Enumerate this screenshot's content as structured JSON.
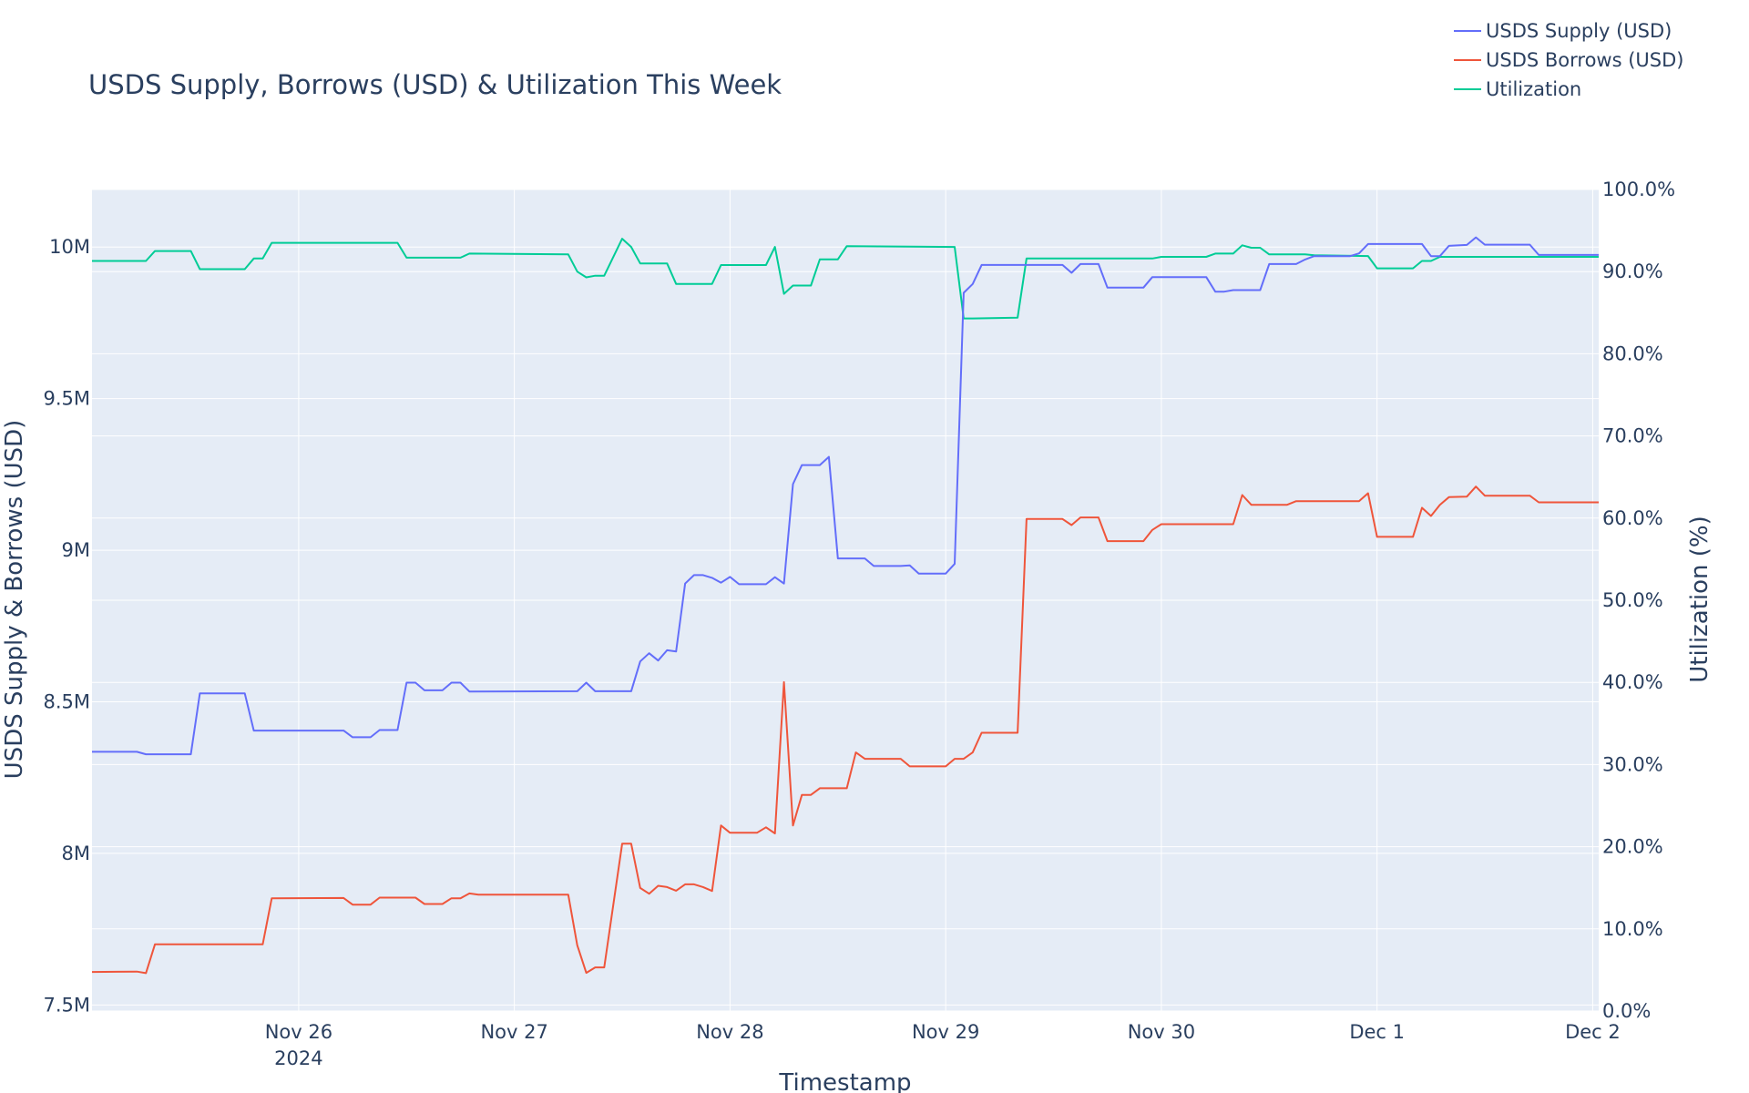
{
  "chart_data": {
    "type": "line",
    "title": "USDS Supply, Borrows (USD) & Utilization This Week",
    "xlabel": "Timestamp",
    "ylabel": "USDS Supply & Borrows (USD)",
    "y2label": "Utilization (%)",
    "x_tick_labels": [
      "Nov 26",
      "Nov 27",
      "Nov 28",
      "Nov 29",
      "Nov 30",
      "Dec 1",
      "Dec 2"
    ],
    "x_year_label": "2024",
    "y_tick_labels": [
      "7.5M",
      "8M",
      "8.5M",
      "9M",
      "9.5M",
      "10M"
    ],
    "y2_tick_labels": [
      "0.0%",
      "10.0%",
      "20.0%",
      "30.0%",
      "40.0%",
      "50.0%",
      "60.0%",
      "70.0%",
      "80.0%",
      "90.0%",
      "100.0%"
    ],
    "xlim": [
      "2024-11-25 01:00",
      "2024-12-02 00:40"
    ],
    "ylim": [
      7480000,
      10190000
    ],
    "y2lim": [
      0,
      100
    ],
    "grid": true,
    "legend_position": "top-right",
    "colors": {
      "plot_bg": "#e5ecf6",
      "supply": "#636efa",
      "borrows": "#ef553b",
      "utilization": "#00cc96",
      "text": "#2a3f5f"
    },
    "series": [
      {
        "name": "USDS Supply (USD)",
        "axis": "y",
        "points": [
          [
            "2024-11-25 01:00",
            8335000
          ],
          [
            "2024-11-25 06:00",
            8335000
          ],
          [
            "2024-11-25 07:00",
            8327000
          ],
          [
            "2024-11-25 12:00",
            8327000
          ],
          [
            "2024-11-25 13:00",
            8528000
          ],
          [
            "2024-11-25 18:00",
            8528000
          ],
          [
            "2024-11-25 19:00",
            8405000
          ],
          [
            "2024-11-26 05:00",
            8405000
          ],
          [
            "2024-11-26 06:00",
            8383000
          ],
          [
            "2024-11-26 08:00",
            8383000
          ],
          [
            "2024-11-26 09:00",
            8407000
          ],
          [
            "2024-11-26 11:00",
            8407000
          ],
          [
            "2024-11-26 12:00",
            8563000
          ],
          [
            "2024-11-26 13:00",
            8563000
          ],
          [
            "2024-11-26 14:00",
            8538000
          ],
          [
            "2024-11-26 16:00",
            8538000
          ],
          [
            "2024-11-26 17:00",
            8563000
          ],
          [
            "2024-11-26 18:00",
            8563000
          ],
          [
            "2024-11-26 19:00",
            8534000
          ],
          [
            "2024-11-27 07:00",
            8535000
          ],
          [
            "2024-11-27 08:00",
            8563000
          ],
          [
            "2024-11-27 09:00",
            8535000
          ],
          [
            "2024-11-27 13:00",
            8535000
          ],
          [
            "2024-11-27 14:00",
            8633000
          ],
          [
            "2024-11-27 15:00",
            8660000
          ],
          [
            "2024-11-27 16:00",
            8636000
          ],
          [
            "2024-11-27 17:00",
            8670000
          ],
          [
            "2024-11-27 18:00",
            8666000
          ],
          [
            "2024-11-27 19:00",
            8890000
          ],
          [
            "2024-11-27 20:00",
            8918000
          ],
          [
            "2024-11-27 21:00",
            8918000
          ],
          [
            "2024-11-27 22:00",
            8909000
          ],
          [
            "2024-11-27 23:00",
            8893000
          ],
          [
            "2024-11-28 00:00",
            8912000
          ],
          [
            "2024-11-28 01:00",
            8888000
          ],
          [
            "2024-11-28 04:00",
            8888000
          ],
          [
            "2024-11-28 05:00",
            8911000
          ],
          [
            "2024-11-28 06:00",
            8890000
          ],
          [
            "2024-11-28 07:00",
            9218000
          ],
          [
            "2024-11-28 08:00",
            9281000
          ],
          [
            "2024-11-28 10:00",
            9281000
          ],
          [
            "2024-11-28 11:00",
            9308000
          ],
          [
            "2024-11-28 12:00",
            8973000
          ],
          [
            "2024-11-28 15:00",
            8973000
          ],
          [
            "2024-11-28 16:00",
            8948000
          ],
          [
            "2024-11-28 19:00",
            8948000
          ],
          [
            "2024-11-28 20:00",
            8950000
          ],
          [
            "2024-11-28 21:00",
            8923000
          ],
          [
            "2024-11-29 00:00",
            8923000
          ],
          [
            "2024-11-29 01:00",
            8955000
          ],
          [
            "2024-11-29 02:00",
            9849000
          ],
          [
            "2024-11-29 03:00",
            9878000
          ],
          [
            "2024-11-29 04:00",
            9941000
          ],
          [
            "2024-11-29 13:00",
            9941000
          ],
          [
            "2024-11-29 14:00",
            9915000
          ],
          [
            "2024-11-29 15:00",
            9944000
          ],
          [
            "2024-11-29 17:00",
            9944000
          ],
          [
            "2024-11-29 18:00",
            9866000
          ],
          [
            "2024-11-29 22:00",
            9866000
          ],
          [
            "2024-11-29 23:00",
            9901000
          ],
          [
            "2024-11-30 05:00",
            9901000
          ],
          [
            "2024-11-30 06:00",
            9853000
          ],
          [
            "2024-11-30 07:00",
            9853000
          ],
          [
            "2024-11-30 08:00",
            9858000
          ],
          [
            "2024-11-30 11:00",
            9858000
          ],
          [
            "2024-11-30 12:00",
            9944000
          ],
          [
            "2024-11-30 15:00",
            9944000
          ],
          [
            "2024-11-30 16:00",
            9959000
          ],
          [
            "2024-11-30 17:00",
            9970000
          ],
          [
            "2024-11-30 21:00",
            9970000
          ],
          [
            "2024-11-30 22:00",
            9979000
          ],
          [
            "2024-11-30 23:00",
            10010000
          ],
          [
            "2024-12-01 05:00",
            10010000
          ],
          [
            "2024-12-01 06:00",
            9970000
          ],
          [
            "2024-12-01 07:00",
            9970000
          ],
          [
            "2024-12-01 08:00",
            10004000
          ],
          [
            "2024-12-01 10:00",
            10007000
          ],
          [
            "2024-12-01 11:00",
            10032000
          ],
          [
            "2024-12-01 12:00",
            10008000
          ],
          [
            "2024-12-01 17:00",
            10008000
          ],
          [
            "2024-12-01 18:00",
            9974000
          ],
          [
            "2024-12-02 00:40",
            9974000
          ]
        ]
      },
      {
        "name": "USDS Borrows (USD)",
        "axis": "y",
        "points": [
          [
            "2024-11-25 01:00",
            7609000
          ],
          [
            "2024-11-25 06:00",
            7610000
          ],
          [
            "2024-11-25 07:00",
            7605000
          ],
          [
            "2024-11-25 08:00",
            7700000
          ],
          [
            "2024-11-25 20:00",
            7700000
          ],
          [
            "2024-11-25 21:00",
            7852000
          ],
          [
            "2024-11-26 05:00",
            7853000
          ],
          [
            "2024-11-26 06:00",
            7831000
          ],
          [
            "2024-11-26 08:00",
            7831000
          ],
          [
            "2024-11-26 09:00",
            7854000
          ],
          [
            "2024-11-26 13:00",
            7854000
          ],
          [
            "2024-11-26 14:00",
            7833000
          ],
          [
            "2024-11-26 16:00",
            7833000
          ],
          [
            "2024-11-26 17:00",
            7852000
          ],
          [
            "2024-11-26 18:00",
            7852000
          ],
          [
            "2024-11-26 19:00",
            7868000
          ],
          [
            "2024-11-26 20:00",
            7864000
          ],
          [
            "2024-11-27 06:00",
            7864000
          ],
          [
            "2024-11-27 07:00",
            7697000
          ],
          [
            "2024-11-27 08:00",
            7606000
          ],
          [
            "2024-11-27 09:00",
            7624000
          ],
          [
            "2024-11-27 10:00",
            7624000
          ],
          [
            "2024-11-27 12:00",
            8032000
          ],
          [
            "2024-11-27 13:00",
            8032000
          ],
          [
            "2024-11-27 14:00",
            7886000
          ],
          [
            "2024-11-27 15:00",
            7867000
          ],
          [
            "2024-11-27 16:00",
            7893000
          ],
          [
            "2024-11-27 17:00",
            7889000
          ],
          [
            "2024-11-27 18:00",
            7877000
          ],
          [
            "2024-11-27 19:00",
            7898000
          ],
          [
            "2024-11-27 20:00",
            7898000
          ],
          [
            "2024-11-27 21:00",
            7889000
          ],
          [
            "2024-11-27 22:00",
            7876000
          ],
          [
            "2024-11-27 23:00",
            8092000
          ],
          [
            "2024-11-28 00:00",
            8068000
          ],
          [
            "2024-11-28 03:00",
            8068000
          ],
          [
            "2024-11-28 04:00",
            8086000
          ],
          [
            "2024-11-28 05:00",
            8066000
          ],
          [
            "2024-11-28 06:00",
            8565000
          ],
          [
            "2024-11-28 07:00",
            8092000
          ],
          [
            "2024-11-28 08:00",
            8193000
          ],
          [
            "2024-11-28 09:00",
            8193000
          ],
          [
            "2024-11-28 10:00",
            8215000
          ],
          [
            "2024-11-28 13:00",
            8215000
          ],
          [
            "2024-11-28 14:00",
            8333000
          ],
          [
            "2024-11-28 15:00",
            8312000
          ],
          [
            "2024-11-28 19:00",
            8312000
          ],
          [
            "2024-11-28 20:00",
            8287000
          ],
          [
            "2024-11-29 00:00",
            8287000
          ],
          [
            "2024-11-29 01:00",
            8312000
          ],
          [
            "2024-11-29 02:00",
            8312000
          ],
          [
            "2024-11-29 03:00",
            8333000
          ],
          [
            "2024-11-29 04:00",
            8398000
          ],
          [
            "2024-11-29 08:00",
            8398000
          ],
          [
            "2024-11-29 09:00",
            9103000
          ],
          [
            "2024-11-29 13:00",
            9103000
          ],
          [
            "2024-11-29 14:00",
            9083000
          ],
          [
            "2024-11-29 15:00",
            9108000
          ],
          [
            "2024-11-29 17:00",
            9108000
          ],
          [
            "2024-11-29 18:00",
            9030000
          ],
          [
            "2024-11-29 22:00",
            9030000
          ],
          [
            "2024-11-29 23:00",
            9067000
          ],
          [
            "2024-11-30 00:00",
            9086000
          ],
          [
            "2024-11-30 08:00",
            9086000
          ],
          [
            "2024-11-30 09:00",
            9182000
          ],
          [
            "2024-11-30 10:00",
            9150000
          ],
          [
            "2024-11-30 14:00",
            9150000
          ],
          [
            "2024-11-30 15:00",
            9162000
          ],
          [
            "2024-11-30 22:00",
            9162000
          ],
          [
            "2024-11-30 23:00",
            9188000
          ],
          [
            "2024-12-01 00:00",
            9044000
          ],
          [
            "2024-12-01 04:00",
            9044000
          ],
          [
            "2024-12-01 05:00",
            9140000
          ],
          [
            "2024-12-01 06:00",
            9113000
          ],
          [
            "2024-12-01 07:00",
            9150000
          ],
          [
            "2024-12-01 08:00",
            9175000
          ],
          [
            "2024-12-01 10:00",
            9177000
          ],
          [
            "2024-12-01 11:00",
            9210000
          ],
          [
            "2024-12-01 12:00",
            9180000
          ],
          [
            "2024-12-01 17:00",
            9180000
          ],
          [
            "2024-12-01 18:00",
            9158000
          ],
          [
            "2024-12-02 00:40",
            9158000
          ]
        ]
      },
      {
        "name": "Utilization",
        "axis": "y2",
        "points": [
          [
            "2024-11-25 01:00",
            91.3
          ],
          [
            "2024-11-25 07:00",
            91.3
          ],
          [
            "2024-11-25 08:00",
            92.5
          ],
          [
            "2024-11-25 12:00",
            92.5
          ],
          [
            "2024-11-25 13:00",
            90.3
          ],
          [
            "2024-11-25 18:00",
            90.3
          ],
          [
            "2024-11-25 19:00",
            91.6
          ],
          [
            "2024-11-25 20:00",
            91.6
          ],
          [
            "2024-11-25 21:00",
            93.5
          ],
          [
            "2024-11-26 11:00",
            93.5
          ],
          [
            "2024-11-26 12:00",
            91.7
          ],
          [
            "2024-11-26 18:00",
            91.7
          ],
          [
            "2024-11-26 19:00",
            92.2
          ],
          [
            "2024-11-27 06:00",
            92.1
          ],
          [
            "2024-11-27 07:00",
            90.0
          ],
          [
            "2024-11-27 08:00",
            89.3
          ],
          [
            "2024-11-27 09:00",
            89.5
          ],
          [
            "2024-11-27 10:00",
            89.5
          ],
          [
            "2024-11-27 12:00",
            94.0
          ],
          [
            "2024-11-27 13:00",
            93.0
          ],
          [
            "2024-11-27 14:00",
            91.0
          ],
          [
            "2024-11-27 17:00",
            91.0
          ],
          [
            "2024-11-27 18:00",
            88.5
          ],
          [
            "2024-11-27 22:00",
            88.5
          ],
          [
            "2024-11-27 23:00",
            90.8
          ],
          [
            "2024-11-28 04:00",
            90.8
          ],
          [
            "2024-11-28 05:00",
            93.0
          ],
          [
            "2024-11-28 06:00",
            87.3
          ],
          [
            "2024-11-28 07:00",
            88.3
          ],
          [
            "2024-11-28 09:00",
            88.3
          ],
          [
            "2024-11-28 10:00",
            91.5
          ],
          [
            "2024-11-28 12:00",
            91.5
          ],
          [
            "2024-11-28 13:00",
            93.1
          ],
          [
            "2024-11-29 01:00",
            93.0
          ],
          [
            "2024-11-29 02:00",
            84.3
          ],
          [
            "2024-11-29 03:00",
            84.3
          ],
          [
            "2024-11-29 08:00",
            84.4
          ],
          [
            "2024-11-29 09:00",
            91.6
          ],
          [
            "2024-11-29 23:00",
            91.6
          ],
          [
            "2024-11-30 00:00",
            91.8
          ],
          [
            "2024-11-30 05:00",
            91.8
          ],
          [
            "2024-11-30 06:00",
            92.2
          ],
          [
            "2024-11-30 08:00",
            92.2
          ],
          [
            "2024-11-30 09:00",
            93.2
          ],
          [
            "2024-11-30 10:00",
            92.9
          ],
          [
            "2024-11-30 11:00",
            92.9
          ],
          [
            "2024-11-30 12:00",
            92.1
          ],
          [
            "2024-11-30 16:00",
            92.1
          ],
          [
            "2024-11-30 17:00",
            92.0
          ],
          [
            "2024-11-30 23:00",
            91.9
          ],
          [
            "2024-12-01 00:00",
            90.4
          ],
          [
            "2024-12-01 04:00",
            90.4
          ],
          [
            "2024-12-01 05:00",
            91.3
          ],
          [
            "2024-12-01 06:00",
            91.3
          ],
          [
            "2024-12-01 07:00",
            91.8
          ],
          [
            "2024-12-02 00:40",
            91.8
          ]
        ]
      }
    ]
  }
}
